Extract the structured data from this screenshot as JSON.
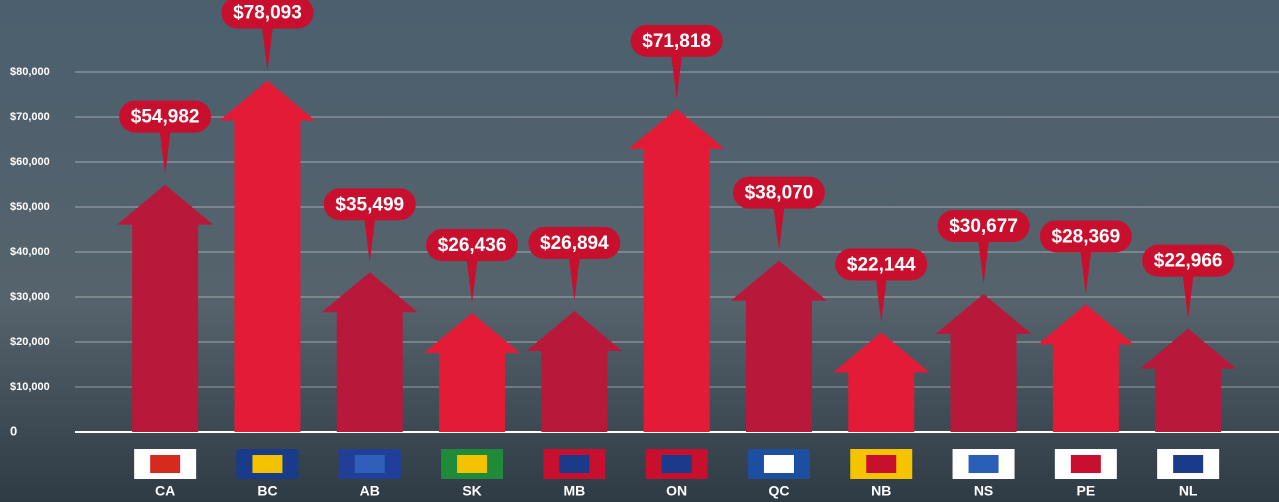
{
  "chart_data": {
    "type": "arrow-bar",
    "categories": [
      "CA",
      "BC",
      "AB",
      "SK",
      "MB",
      "ON",
      "QC",
      "NB",
      "NS",
      "PE",
      "NL"
    ],
    "values": [
      54982,
      78093,
      35499,
      26436,
      26894,
      71818,
      38070,
      22144,
      30677,
      28369,
      22966
    ],
    "value_labels": [
      "$54,982",
      "$78,093",
      "$35,499",
      "$26,436",
      "$26,894",
      "$71,818",
      "$38,070",
      "$22,144",
      "$30,677",
      "$28,369",
      "$22,966"
    ],
    "colors": [
      "#b8193a",
      "#e31b37",
      "#b8193a",
      "#e31b37",
      "#b8193a",
      "#e31b37",
      "#b8193a",
      "#e31b37",
      "#b8193a",
      "#e31b37",
      "#b8193a"
    ],
    "ylim": [
      0,
      80000
    ],
    "yticks": [
      0,
      {
        "value": 10000,
        "label": "$10,000"
      },
      {
        "value": 20000,
        "label": "$20,000"
      },
      {
        "value": 30000,
        "label": "$30,000"
      },
      {
        "value": 40000,
        "label": "$40,000"
      },
      {
        "value": 50000,
        "label": "$50,000"
      },
      {
        "value": 60000,
        "label": "$60,000"
      },
      {
        "value": 70000,
        "label": "$70,000"
      },
      {
        "value": 80000,
        "label": "$80,000"
      }
    ],
    "grid": true
  }
}
